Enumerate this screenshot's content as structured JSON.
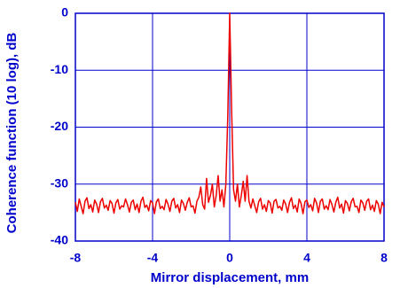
{
  "chart_data": {
    "type": "line",
    "x_label": "Mirror displacement, mm",
    "y_label": "Coherence function (10 log), dB",
    "xlim": [
      -8,
      8
    ],
    "xticks": [
      -8,
      -4,
      0,
      4,
      8
    ],
    "ylim": [
      -40,
      0
    ],
    "yticks": [
      0,
      -10,
      -20,
      -30,
      -40
    ],
    "grid": true,
    "color": "#ee0000",
    "axis_color": "#0000cc",
    "x": [
      -8.0,
      -7.9,
      -7.8,
      -7.7,
      -7.6,
      -7.5,
      -7.4,
      -7.3,
      -7.2,
      -7.1,
      -7.0,
      -6.9,
      -6.8,
      -6.7,
      -6.6,
      -6.5,
      -6.4,
      -6.3,
      -6.2,
      -6.1,
      -6.0,
      -5.9,
      -5.8,
      -5.7,
      -5.6,
      -5.5,
      -5.4,
      -5.3,
      -5.2,
      -5.1,
      -5.0,
      -4.9,
      -4.8,
      -4.7,
      -4.6,
      -4.5,
      -4.4,
      -4.3,
      -4.2,
      -4.1,
      -4.0,
      -3.9,
      -3.8,
      -3.7,
      -3.6,
      -3.5,
      -3.4,
      -3.3,
      -3.2,
      -3.1,
      -3.0,
      -2.9,
      -2.8,
      -2.7,
      -2.6,
      -2.5,
      -2.4,
      -2.3,
      -2.2,
      -2.1,
      -2.0,
      -1.9,
      -1.8,
      -1.7,
      -1.6,
      -1.5,
      -1.4,
      -1.3,
      -1.2,
      -1.1,
      -1.0,
      -0.9,
      -0.8,
      -0.7,
      -0.6,
      -0.5,
      -0.4,
      -0.3,
      -0.2,
      -0.1,
      0.0,
      0.1,
      0.2,
      0.3,
      0.4,
      0.5,
      0.6,
      0.7,
      0.8,
      0.9,
      1.0,
      1.1,
      1.2,
      1.3,
      1.4,
      1.5,
      1.6,
      1.7,
      1.8,
      1.9,
      2.0,
      2.1,
      2.2,
      2.3,
      2.4,
      2.5,
      2.6,
      2.7,
      2.8,
      2.9,
      3.0,
      3.1,
      3.2,
      3.3,
      3.4,
      3.5,
      3.6,
      3.7,
      3.8,
      3.9,
      4.0,
      4.1,
      4.2,
      4.3,
      4.4,
      4.5,
      4.6,
      4.7,
      4.8,
      4.9,
      5.0,
      5.1,
      5.2,
      5.3,
      5.4,
      5.5,
      5.6,
      5.7,
      5.8,
      5.9,
      6.0,
      6.1,
      6.2,
      6.3,
      6.4,
      6.5,
      6.6,
      6.7,
      6.8,
      6.9,
      7.0,
      7.1,
      7.2,
      7.3,
      7.4,
      7.5,
      7.6,
      7.7,
      7.8,
      7.9,
      8.0
    ],
    "values": [
      -33.2,
      -34.8,
      -32.6,
      -33.9,
      -35.2,
      -33.0,
      -32.4,
      -34.3,
      -33.6,
      -34.9,
      -32.8,
      -33.5,
      -35.0,
      -33.1,
      -32.5,
      -34.2,
      -33.7,
      -34.6,
      -32.9,
      -33.4,
      -35.1,
      -33.3,
      -32.7,
      -34.4,
      -33.8,
      -34.0,
      -32.6,
      -33.6,
      -34.9,
      -33.2,
      -32.8,
      -34.5,
      -33.5,
      -35.0,
      -33.0,
      -32.3,
      -34.1,
      -33.7,
      -34.7,
      -32.9,
      -33.3,
      -35.2,
      -33.1,
      -32.6,
      -34.3,
      -33.9,
      -34.5,
      -32.7,
      -33.5,
      -34.8,
      -33.0,
      -32.5,
      -34.2,
      -33.6,
      -35.0,
      -32.8,
      -33.4,
      -34.6,
      -33.2,
      -32.4,
      -34.0,
      -33.8,
      -35.1,
      -33.0,
      -32.3,
      -30.5,
      -33.6,
      -34.4,
      -29.0,
      -33.2,
      -32.0,
      -30.0,
      -34.0,
      -32.0,
      -28.5,
      -33.0,
      -31.0,
      -34.0,
      -30.0,
      -18.0,
      0.0,
      -17.0,
      -31.0,
      -33.0,
      -30.0,
      -34.0,
      -32.0,
      -29.5,
      -33.0,
      -28.5,
      -33.0,
      -34.2,
      -32.6,
      -33.8,
      -35.0,
      -33.1,
      -32.5,
      -34.4,
      -33.6,
      -34.8,
      -32.9,
      -33.3,
      -35.1,
      -33.0,
      -32.7,
      -34.2,
      -33.9,
      -34.6,
      -32.8,
      -33.5,
      -35.0,
      -33.2,
      -32.4,
      -34.3,
      -33.7,
      -34.9,
      -32.6,
      -33.4,
      -35.2,
      -33.1,
      -32.8,
      -34.1,
      -33.6,
      -34.7,
      -32.5,
      -33.3,
      -35.0,
      -33.0,
      -32.6,
      -34.4,
      -33.8,
      -34.5,
      -32.7,
      -33.6,
      -34.9,
      -33.2,
      -32.3,
      -34.2,
      -33.5,
      -35.1,
      -32.9,
      -33.4,
      -34.7,
      -33.1,
      -32.5,
      -34.0,
      -33.9,
      -35.0,
      -32.8,
      -33.3,
      -34.6,
      -33.0,
      -32.6,
      -34.5,
      -33.7,
      -34.8,
      -32.9,
      -33.5,
      -35.2,
      -33.2,
      -34.0
    ]
  }
}
